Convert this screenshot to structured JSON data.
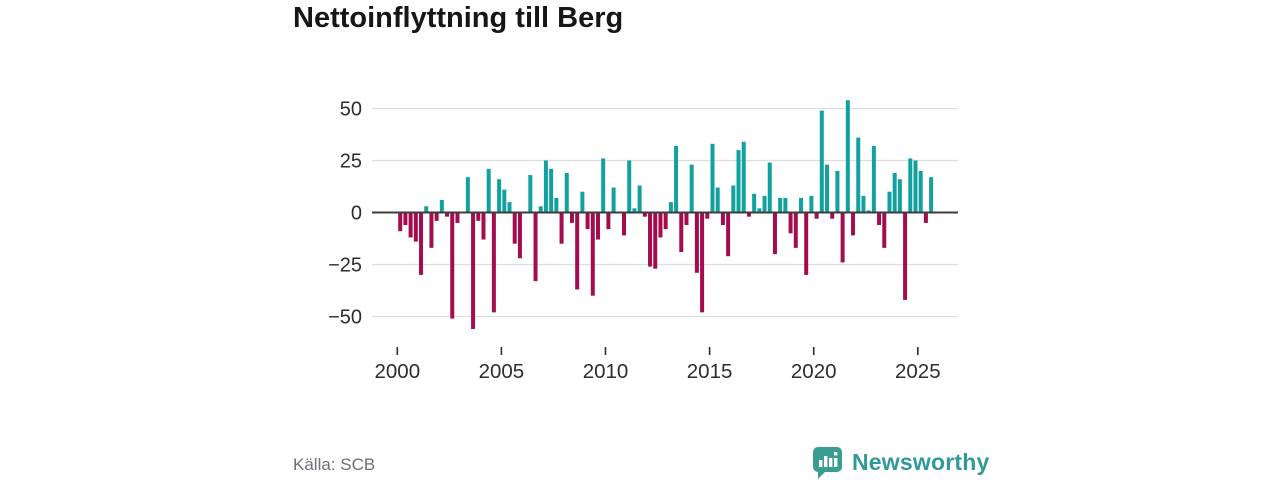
{
  "title": "Nettoinflyttning till Berg",
  "source": "Källa: SCB",
  "branding": {
    "name": "Newsworthy",
    "logo_icon": "bar-chart-speech-bubble",
    "color": "#2f9a96"
  },
  "chart_data": {
    "type": "bar",
    "title": "Nettoinflyttning till Berg",
    "frequency": "quarterly",
    "start_year": 2000,
    "start_quarter": 1,
    "values": [
      -9,
      -6,
      -12,
      -14,
      -30,
      3,
      -17,
      -4,
      6,
      -2,
      -51,
      -5,
      0,
      17,
      -56,
      -4,
      -13,
      21,
      -48,
      16,
      11,
      5,
      -15,
      -22,
      0,
      18,
      -33,
      3,
      25,
      21,
      7,
      -15,
      19,
      -5,
      -37,
      10,
      -8,
      -40,
      -13,
      26,
      -8,
      12,
      0,
      -11,
      25,
      2,
      13,
      -2,
      -26,
      -27,
      -12,
      -8,
      5,
      32,
      -19,
      -6,
      23,
      -29,
      -48,
      -3,
      33,
      12,
      -6,
      -21,
      13,
      30,
      34,
      -2,
      9,
      2,
      8,
      24,
      -20,
      7,
      7,
      -10,
      -17,
      7,
      -30,
      8,
      -3,
      49,
      23,
      -3,
      20,
      -24,
      54,
      -11,
      36,
      8,
      1,
      32,
      -6,
      -17,
      10,
      19,
      16,
      -42,
      26,
      25,
      20,
      -5,
      17
    ],
    "x_tick_labels": [
      "2000",
      "2005",
      "2010",
      "2015",
      "2020",
      "2025"
    ],
    "x_tick_years": [
      2000,
      2005,
      2010,
      2015,
      2020,
      2025
    ],
    "y_tick_values": [
      50,
      25,
      0,
      -25,
      -50
    ],
    "y_tick_labels": [
      "50",
      "25",
      "0",
      "−25",
      "−50"
    ],
    "ylim": [
      -61,
      61
    ],
    "grid": "horizontal",
    "legend": "none",
    "positive_color": "#12a19e",
    "negative_color": "#a40d4d",
    "zero_line_color": "#3c3c3c",
    "grid_color": "#dddddd",
    "tick_label_color": "#2e2e2e"
  }
}
